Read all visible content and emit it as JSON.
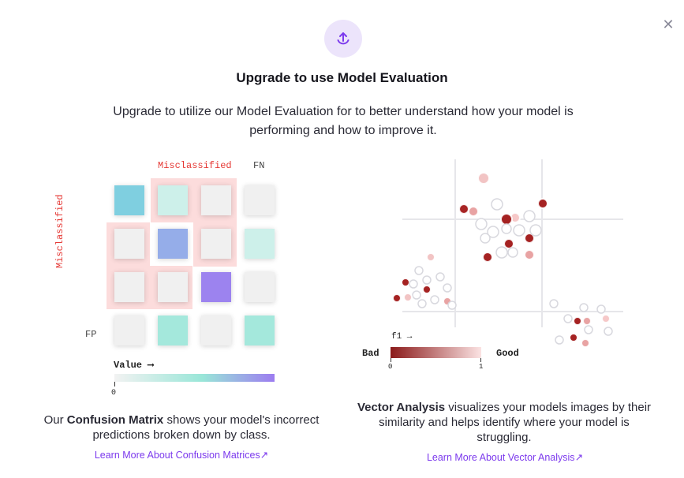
{
  "dialog": {
    "close_icon": "close-icon",
    "badge_icon": "upload-icon",
    "title": "Upgrade to use Model Evaluation",
    "subtitle": "Upgrade to utilize our Model Evaluation for to better understand how your model is performing and how to improve it."
  },
  "confusion_matrix": {
    "label_top": "Misclassified",
    "label_fn": "FN",
    "label_left": "Misclassified",
    "label_fp": "FP",
    "value_axis_label": "Value ⟶",
    "value_axis_tick": "0",
    "description_prefix": "Our ",
    "description_bold": "Confusion Matrix",
    "description_suffix": " shows your model's incorrect predictions broken down by class.",
    "link": "Learn More About Confusion Matrices",
    "link_icon": "arrow-up-right-icon",
    "colors": {
      "misclassified": "#e53935",
      "highlight": "#fcdcdc",
      "gradient": [
        "#f2f2f2",
        "#99e6d8",
        "#9c7cf0"
      ]
    }
  },
  "vector_analysis": {
    "axis_label": "f1 →",
    "scale_bad": "Bad",
    "scale_good": "Good",
    "scale_min": "0",
    "scale_max": "1",
    "description_bold": "Vector Analysis",
    "description_suffix": " visualizes your models images by their similarity and helps identify where your model is struggling.",
    "link": "Learn More About Vector Analysis",
    "link_icon": "arrow-up-right-icon",
    "colors": {
      "bad": "#8b1a1a",
      "good": "#fbe3e3"
    }
  }
}
